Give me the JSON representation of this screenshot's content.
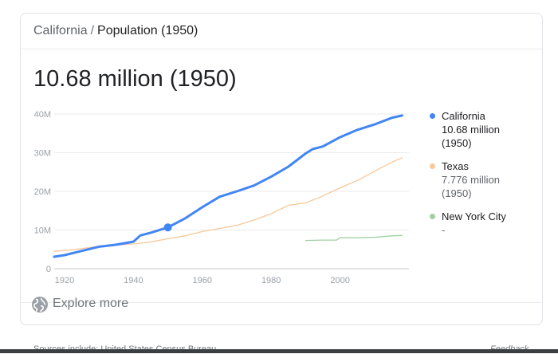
{
  "breadcrumb": {
    "parent": "California",
    "separator": "/",
    "current": "Population (1950)"
  },
  "headline": "10.68 million (1950)",
  "legend": [
    {
      "name": "California",
      "value": "10.68 million",
      "year": "(1950)",
      "color": "#4285f4"
    },
    {
      "name": "Texas",
      "value": "7.776 million",
      "year": "(1950)",
      "color": "#f8c89a"
    },
    {
      "name": "New York City",
      "value": "-",
      "year": "",
      "color": "#9fd0a0"
    }
  ],
  "footer": {
    "explore": "Explore more",
    "sources": "Sources include: United States Census Bureau",
    "feedback": "Feedback",
    "icon": "globe-icon"
  },
  "chart_data": {
    "type": "line",
    "x_ticks": [
      1920,
      1940,
      1960,
      1980,
      2000
    ],
    "y_ticks": [
      0,
      10,
      20,
      30,
      40
    ],
    "y_tick_labels": [
      "0",
      "10M",
      "20M",
      "30M",
      "40M"
    ],
    "xlim": [
      1917,
      2020
    ],
    "ylim": [
      0,
      40
    ],
    "grid": true,
    "highlight": {
      "series": "California",
      "x": 1950,
      "y": 10.68
    },
    "series": [
      {
        "name": "California",
        "color": "#4285f4",
        "x": [
          1917,
          1920,
          1925,
          1930,
          1935,
          1940,
          1942,
          1945,
          1950,
          1955,
          1960,
          1965,
          1970,
          1975,
          1980,
          1985,
          1990,
          1992,
          1995,
          2000,
          2005,
          2010,
          2015,
          2018
        ],
        "y": [
          3.1,
          3.5,
          4.6,
          5.7,
          6.2,
          7.0,
          8.6,
          9.3,
          10.68,
          13.0,
          15.9,
          18.6,
          20.0,
          21.5,
          23.8,
          26.4,
          29.8,
          30.9,
          31.6,
          34.0,
          35.9,
          37.3,
          39.0,
          39.6
        ]
      },
      {
        "name": "Texas",
        "color": "#f8c89a",
        "x": [
          1917,
          1920,
          1925,
          1930,
          1935,
          1940,
          1945,
          1950,
          1955,
          1960,
          1965,
          1970,
          1975,
          1980,
          1985,
          1990,
          1995,
          2000,
          2005,
          2010,
          2015,
          2018
        ],
        "y": [
          4.5,
          4.7,
          5.2,
          5.8,
          6.1,
          6.4,
          6.9,
          7.776,
          8.5,
          9.6,
          10.4,
          11.2,
          12.6,
          14.2,
          16.4,
          17.0,
          18.8,
          20.9,
          22.8,
          25.2,
          27.5,
          28.7
        ]
      },
      {
        "name": "New York City",
        "color": "#9fd0a0",
        "x": [
          1990,
          1995,
          1999,
          2000,
          2005,
          2010,
          2015,
          2018
        ],
        "y": [
          7.3,
          7.4,
          7.4,
          8.0,
          8.0,
          8.1,
          8.5,
          8.6
        ]
      }
    ]
  }
}
